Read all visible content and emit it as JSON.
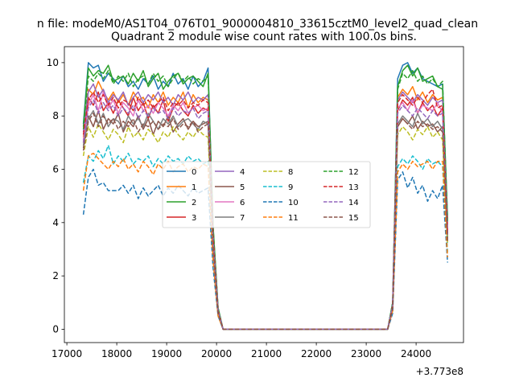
{
  "suptitle": "n file: modeM0/AS1T04_076T01_9000004810_33615cztM0_level2_quad_clean",
  "chart_data": {
    "type": "line",
    "title": "Quadrant 2 module wise count rates with 100.0s bins.",
    "xlabel": "",
    "ylabel": "",
    "x_offset_label": "+3.773e8",
    "xlim": [
      16950,
      24950
    ],
    "ylim": [
      -0.5,
      10.6
    ],
    "xticks": [
      17000,
      18000,
      19000,
      20000,
      21000,
      22000,
      23000,
      24000
    ],
    "yticks": [
      0,
      2,
      4,
      6,
      8,
      10
    ],
    "grid": false,
    "legend": {
      "placement": "center",
      "columns": 4
    },
    "x": [
      17330,
      17430,
      17530,
      17630,
      17730,
      17830,
      17930,
      18030,
      18130,
      18230,
      18330,
      18430,
      18530,
      18630,
      18730,
      18830,
      18930,
      19030,
      19130,
      19230,
      19330,
      19430,
      19530,
      19630,
      19730,
      19830,
      19930,
      20030,
      20130,
      20230,
      23430,
      23530,
      23630,
      23730,
      23830,
      23930,
      24030,
      24130,
      24230,
      24330,
      24430,
      24530,
      24630
    ],
    "series": [
      {
        "name": "0",
        "color": "#1f77b4",
        "dash": "solid",
        "values": [
          7.7,
          10.0,
          9.8,
          9.9,
          9.3,
          9.6,
          9.4,
          9.2,
          9.5,
          9.1,
          9.3,
          9.0,
          9.4,
          9.2,
          9.5,
          9.0,
          9.3,
          9.1,
          9.6,
          9.2,
          9.4,
          9.0,
          9.5,
          9.1,
          9.3,
          9.8,
          3.8,
          0.8,
          0.0,
          0.0,
          0.0,
          1.0,
          9.4,
          9.9,
          10.0,
          9.6,
          9.8,
          9.4,
          9.3,
          9.2,
          9.1,
          9.2,
          4.2
        ]
      },
      {
        "name": "1",
        "color": "#ff7f0e",
        "dash": "solid",
        "values": [
          7.2,
          9.0,
          8.8,
          9.3,
          8.9,
          8.6,
          8.9,
          8.5,
          8.8,
          8.4,
          8.9,
          8.6,
          8.7,
          8.3,
          8.8,
          8.5,
          8.9,
          8.4,
          8.7,
          8.5,
          8.9,
          8.3,
          8.8,
          8.5,
          8.7,
          8.6,
          3.5,
          0.7,
          0.0,
          0.0,
          0.0,
          0.9,
          8.7,
          9.0,
          8.8,
          9.1,
          8.6,
          8.9,
          8.5,
          8.8,
          8.6,
          8.7,
          3.8
        ]
      },
      {
        "name": "2",
        "color": "#2ca02c",
        "dash": "solid",
        "values": [
          7.6,
          9.8,
          9.5,
          9.7,
          9.6,
          9.9,
          9.3,
          9.4,
          9.5,
          9.2,
          9.6,
          9.3,
          9.7,
          9.1,
          9.4,
          9.6,
          9.0,
          9.3,
          9.5,
          9.6,
          9.2,
          9.4,
          9.5,
          9.3,
          9.1,
          9.6,
          3.9,
          0.8,
          0.0,
          0.0,
          0.0,
          1.0,
          9.1,
          9.7,
          9.9,
          9.5,
          9.8,
          9.3,
          9.4,
          9.5,
          9.1,
          9.0,
          4.1
        ]
      },
      {
        "name": "3",
        "color": "#d62728",
        "dash": "solid",
        "values": [
          7.0,
          8.7,
          8.4,
          8.9,
          8.2,
          8.5,
          8.1,
          8.6,
          8.3,
          8.0,
          8.7,
          8.2,
          8.5,
          7.9,
          8.4,
          8.1,
          8.6,
          7.8,
          8.3,
          8.5,
          8.2,
          8.0,
          8.4,
          8.1,
          8.3,
          8.2,
          3.4,
          0.7,
          0.0,
          0.0,
          0.0,
          0.9,
          8.2,
          8.6,
          8.4,
          8.7,
          8.1,
          8.5,
          8.2,
          8.4,
          8.0,
          8.3,
          3.6
        ]
      },
      {
        "name": "4",
        "color": "#9467bd",
        "dash": "solid",
        "values": [
          7.4,
          8.9,
          9.2,
          8.7,
          9.0,
          8.5,
          8.8,
          8.6,
          8.9,
          8.4,
          8.7,
          8.9,
          8.5,
          8.8,
          8.6,
          8.9,
          8.5,
          8.7,
          8.4,
          8.8,
          8.6,
          8.9,
          8.5,
          8.7,
          8.6,
          8.8,
          3.6,
          0.7,
          0.0,
          0.0,
          0.0,
          0.9,
          8.6,
          8.9,
          8.7,
          8.5,
          8.8,
          8.6,
          8.4,
          8.7,
          8.5,
          8.6,
          3.9
        ]
      },
      {
        "name": "5",
        "color": "#8c564b",
        "dash": "solid",
        "values": [
          6.8,
          8.0,
          7.6,
          8.2,
          7.5,
          7.9,
          7.7,
          8.1,
          7.4,
          7.8,
          7.6,
          8.0,
          7.5,
          7.9,
          7.3,
          7.8,
          7.6,
          8.0,
          7.4,
          7.7,
          7.9,
          7.5,
          7.8,
          7.6,
          7.7,
          7.8,
          3.2,
          0.6,
          0.0,
          0.0,
          0.0,
          0.8,
          7.6,
          7.9,
          7.7,
          8.0,
          7.5,
          7.8,
          7.6,
          7.7,
          7.4,
          7.6,
          3.4
        ]
      },
      {
        "name": "6",
        "color": "#e377c2",
        "dash": "solid",
        "values": [
          7.1,
          8.4,
          8.8,
          8.2,
          8.9,
          8.3,
          8.6,
          8.1,
          8.5,
          8.3,
          8.0,
          8.6,
          8.2,
          8.4,
          8.1,
          8.5,
          8.3,
          8.0,
          8.4,
          8.2,
          8.5,
          8.1,
          8.3,
          8.4,
          8.2,
          8.3,
          3.4,
          0.7,
          0.0,
          0.0,
          0.0,
          0.9,
          8.3,
          8.5,
          8.2,
          8.6,
          8.1,
          8.4,
          8.3,
          8.2,
          8.5,
          8.1,
          3.7
        ]
      },
      {
        "name": "7",
        "color": "#7f7f7f",
        "dash": "solid",
        "values": [
          6.9,
          7.9,
          8.2,
          7.7,
          8.1,
          7.6,
          7.9,
          7.8,
          7.5,
          8.0,
          7.7,
          7.9,
          7.6,
          8.1,
          7.8,
          7.5,
          7.9,
          7.7,
          8.0,
          7.6,
          7.8,
          7.9,
          7.7,
          7.5,
          7.8,
          7.7,
          3.2,
          0.6,
          0.0,
          0.0,
          0.0,
          0.8,
          7.7,
          8.0,
          7.8,
          7.6,
          8.1,
          7.7,
          7.9,
          7.6,
          7.8,
          7.5,
          3.3
        ]
      },
      {
        "name": "8",
        "color": "#bcbd22",
        "dash": "dash",
        "values": [
          6.5,
          7.6,
          7.2,
          7.7,
          7.4,
          7.1,
          7.5,
          7.3,
          7.0,
          7.6,
          7.2,
          7.4,
          7.1,
          7.5,
          7.3,
          7.0,
          7.4,
          7.2,
          7.6,
          7.3,
          7.1,
          7.4,
          7.2,
          7.5,
          7.3,
          7.2,
          3.0,
          0.6,
          0.0,
          0.0,
          0.0,
          0.8,
          7.3,
          7.6,
          7.4,
          7.1,
          7.5,
          7.3,
          7.6,
          7.2,
          7.4,
          7.1,
          3.2
        ]
      },
      {
        "name": "9",
        "color": "#17becf",
        "dash": "dash",
        "values": [
          5.5,
          6.5,
          6.3,
          6.7,
          6.4,
          6.9,
          6.2,
          6.5,
          6.3,
          6.6,
          6.2,
          6.4,
          6.3,
          6.5,
          6.1,
          6.4,
          6.2,
          6.5,
          6.3,
          6.4,
          6.2,
          6.5,
          6.3,
          6.4,
          6.2,
          6.3,
          2.6,
          0.5,
          0.0,
          0.0,
          0.0,
          0.7,
          6.1,
          6.4,
          6.2,
          6.5,
          6.3,
          6.0,
          6.4,
          6.2,
          6.3,
          6.1,
          2.9
        ]
      },
      {
        "name": "10",
        "color": "#1f77b4",
        "dash": "dash",
        "values": [
          4.3,
          5.7,
          6.0,
          5.4,
          5.5,
          5.2,
          5.2,
          5.2,
          5.4,
          5.1,
          5.4,
          4.9,
          5.3,
          5.0,
          5.2,
          5.4,
          5.0,
          5.3,
          5.1,
          5.4,
          5.2,
          5.0,
          5.3,
          5.1,
          5.2,
          5.3,
          2.3,
          0.5,
          0.0,
          0.0,
          0.0,
          0.6,
          5.6,
          5.9,
          5.3,
          5.7,
          5.1,
          5.4,
          4.8,
          5.2,
          4.9,
          5.4,
          2.5
        ]
      },
      {
        "name": "11",
        "color": "#ff7f0e",
        "dash": "dash",
        "values": [
          5.2,
          6.5,
          6.6,
          6.4,
          6.2,
          6.0,
          6.3,
          6.1,
          6.4,
          6.0,
          6.2,
          5.9,
          6.3,
          6.1,
          5.8,
          6.2,
          6.0,
          6.3,
          5.9,
          6.1,
          6.2,
          5.9,
          6.1,
          6.0,
          6.2,
          6.1,
          2.6,
          0.5,
          0.0,
          0.0,
          0.0,
          0.7,
          5.9,
          6.2,
          6.0,
          6.3,
          6.1,
          6.2,
          6.3,
          6.0,
          6.3,
          6.3,
          2.7
        ]
      },
      {
        "name": "12",
        "color": "#2ca02c",
        "dash": "dash",
        "values": [
          7.5,
          9.5,
          9.3,
          9.6,
          9.4,
          9.7,
          9.2,
          9.5,
          9.3,
          9.6,
          9.1,
          9.4,
          9.5,
          9.2,
          9.6,
          9.3,
          9.5,
          9.1,
          9.4,
          9.6,
          9.3,
          9.5,
          9.2,
          9.4,
          9.3,
          9.5,
          3.8,
          0.8,
          0.0,
          0.0,
          0.0,
          1.0,
          9.0,
          9.6,
          9.4,
          9.7,
          9.3,
          9.5,
          9.2,
          9.4,
          9.1,
          9.3,
          4.0
        ]
      },
      {
        "name": "13",
        "color": "#d62728",
        "dash": "dash",
        "values": [
          7.3,
          8.6,
          8.9,
          8.5,
          8.8,
          8.4,
          8.7,
          8.3,
          8.6,
          8.5,
          8.2,
          8.7,
          8.4,
          8.6,
          8.3,
          8.5,
          8.7,
          8.2,
          8.5,
          8.4,
          8.6,
          8.3,
          8.5,
          8.4,
          8.6,
          8.5,
          3.5,
          0.7,
          0.0,
          0.0,
          0.0,
          0.9,
          8.5,
          8.8,
          8.6,
          8.4,
          8.7,
          8.5,
          8.8,
          9.0,
          8.3,
          8.4,
          3.6
        ]
      },
      {
        "name": "14",
        "color": "#9467bd",
        "dash": "dash",
        "values": [
          7.0,
          8.3,
          8.6,
          8.1,
          8.5,
          8.2,
          8.4,
          8.0,
          8.3,
          8.1,
          8.4,
          7.9,
          8.2,
          8.0,
          8.3,
          8.1,
          8.2,
          7.9,
          8.3,
          8.0,
          8.2,
          8.1,
          8.3,
          7.9,
          8.1,
          8.2,
          3.3,
          0.7,
          0.0,
          0.0,
          0.0,
          0.9,
          8.1,
          8.4,
          8.2,
          8.0,
          8.3,
          8.1,
          7.9,
          8.2,
          8.0,
          8.1,
          3.5
        ]
      },
      {
        "name": "15",
        "color": "#8c564b",
        "dash": "dash",
        "values": [
          6.7,
          7.8,
          8.1,
          7.6,
          8.0,
          7.7,
          7.9,
          7.5,
          7.8,
          7.6,
          7.9,
          7.4,
          7.7,
          7.6,
          7.8,
          7.5,
          7.7,
          7.6,
          7.9,
          7.5,
          7.7,
          7.6,
          7.8,
          7.4,
          7.6,
          7.7,
          3.1,
          0.6,
          0.0,
          0.0,
          0.0,
          0.8,
          7.6,
          7.9,
          7.7,
          7.5,
          7.8,
          7.6,
          7.7,
          7.5,
          7.6,
          7.4,
          3.3
        ]
      }
    ]
  }
}
